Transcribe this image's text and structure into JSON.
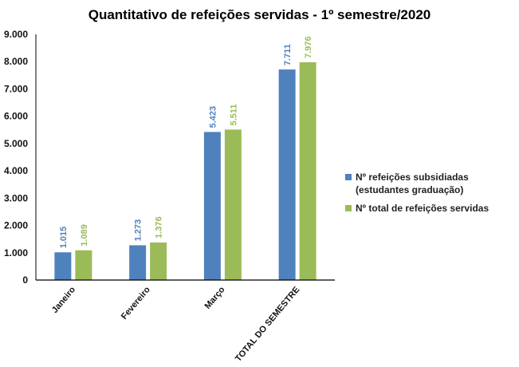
{
  "chart_data": {
    "type": "bar",
    "title": "Quantitativo de refeições servidas - 1º semestre/2020",
    "categories": [
      "Janeiro",
      "Fevereiro",
      "Março",
      "TOTAL DO SEMESTRE"
    ],
    "series": [
      {
        "name": "Nº refeições subsidiadas (estudantes graduação)",
        "values": [
          1015,
          1273,
          5423,
          7711
        ],
        "labels": [
          "1.015",
          "1.273",
          "5.423",
          "7.711"
        ],
        "color": "#4f81bd"
      },
      {
        "name": "Nº total de refeições servidas",
        "values": [
          1089,
          1376,
          5511,
          7976
        ],
        "labels": [
          "1.089",
          "1.376",
          "5.511",
          "7.976"
        ],
        "color": "#9bbb59"
      }
    ],
    "xlabel": "",
    "ylabel": "",
    "ylim": [
      0,
      9000
    ],
    "yticks": [
      "0",
      "1.000",
      "2.000",
      "3.000",
      "4.000",
      "5.000",
      "6.000",
      "7.000",
      "8.000",
      "9.000"
    ],
    "grid": false,
    "legend_position": "right"
  }
}
